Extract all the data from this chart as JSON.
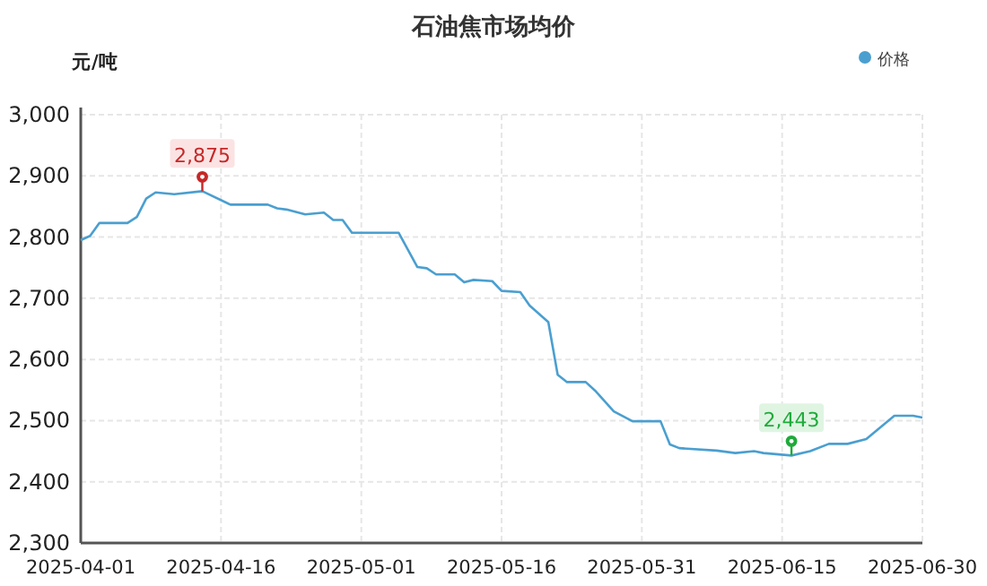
{
  "chart_data": {
    "type": "line",
    "title": "石油焦市场均价",
    "ylabel": "元/吨",
    "x": [
      "2025-04-01",
      "2025-04-02",
      "2025-04-03",
      "2025-04-06",
      "2025-04-07",
      "2025-04-08",
      "2025-04-09",
      "2025-04-11",
      "2025-04-14",
      "2025-04-17",
      "2025-04-21",
      "2025-04-22",
      "2025-04-23",
      "2025-04-25",
      "2025-04-27",
      "2025-04-28",
      "2025-04-29",
      "2025-04-30",
      "2025-05-05",
      "2025-05-07",
      "2025-05-08",
      "2025-05-09",
      "2025-05-11",
      "2025-05-12",
      "2025-05-13",
      "2025-05-15",
      "2025-05-16",
      "2025-05-18",
      "2025-05-19",
      "2025-05-21",
      "2025-05-22",
      "2025-05-23",
      "2025-05-25",
      "2025-05-26",
      "2025-05-28",
      "2025-05-30",
      "2025-06-02",
      "2025-06-03",
      "2025-06-04",
      "2025-06-08",
      "2025-06-10",
      "2025-06-12",
      "2025-06-13",
      "2025-06-16",
      "2025-06-18",
      "2025-06-20",
      "2025-06-22",
      "2025-06-24",
      "2025-06-27",
      "2025-06-29",
      "2025-06-30"
    ],
    "series": [
      {
        "name": "价格",
        "color": "#4a9fd0",
        "values": [
          2795,
          2802,
          2823,
          2823,
          2833,
          2863,
          2873,
          2870,
          2875,
          2853,
          2853,
          2847,
          2845,
          2837,
          2840,
          2828,
          2828,
          2807,
          2807,
          2751,
          2749,
          2739,
          2739,
          2726,
          2730,
          2728,
          2712,
          2710,
          2688,
          2661,
          2575,
          2563,
          2563,
          2549,
          2515,
          2499,
          2499,
          2461,
          2455,
          2451,
          2447,
          2450,
          2447,
          2443,
          2450,
          2462,
          2462,
          2470,
          2508,
          2508,
          2505
        ]
      }
    ],
    "xlim": [
      "2025-04-01",
      "2025-06-30"
    ],
    "xticks": [
      "2025-04-01",
      "2025-04-16",
      "2025-05-01",
      "2025-05-16",
      "2025-05-31",
      "2025-06-15",
      "2025-06-30"
    ],
    "ylim": [
      2300,
      3000
    ],
    "yticks": [
      {
        "value": 2300,
        "label": "2,300"
      },
      {
        "value": 2400,
        "label": "2,400"
      },
      {
        "value": 2500,
        "label": "2,500"
      },
      {
        "value": 2600,
        "label": "2,600"
      },
      {
        "value": 2700,
        "label": "2,700"
      },
      {
        "value": 2800,
        "label": "2,800"
      },
      {
        "value": 2900,
        "label": "2,900"
      },
      {
        "value": 3000,
        "label": "3,000"
      }
    ],
    "annotations": [
      {
        "text": "2,875",
        "x": "2025-04-14",
        "y": 2875
      },
      {
        "text": "2,443",
        "x": "2025-06-16",
        "y": 2443
      }
    ],
    "grid": true,
    "legend": "top right",
    "marker": "none"
  }
}
